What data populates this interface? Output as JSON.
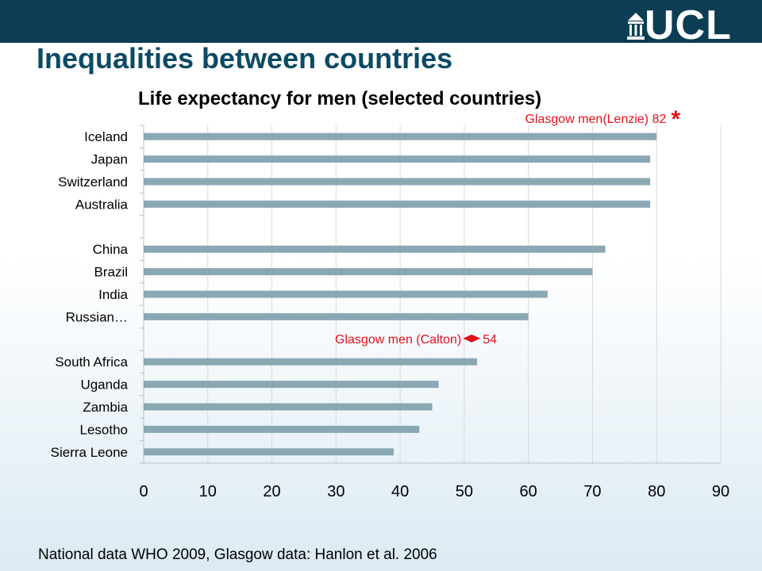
{
  "slide": {
    "title": "Inequalities between countries",
    "source": "National data WHO 2009, Glasgow data: Hanlon et al. 2006"
  },
  "logo": {
    "text": "UCL"
  },
  "colors": {
    "topbar": "#0b3d55",
    "title": "#0b4a66",
    "bar": "#8aa8b4",
    "annotation": "#e2121b"
  },
  "chart_data": {
    "type": "bar",
    "orientation": "horizontal",
    "title": "Life expectancy for men (selected countries)",
    "xlabel": "",
    "ylabel": "",
    "xlim": [
      0,
      90
    ],
    "xticks": [
      0,
      10,
      20,
      30,
      40,
      50,
      60,
      70,
      80,
      90
    ],
    "grid": true,
    "categories": [
      "Iceland",
      "Japan",
      "Switzerland",
      "Australia",
      "",
      "China",
      "Brazil",
      "India",
      "Russian…",
      "",
      "South Africa",
      "Uganda",
      "Zambia",
      "Lesotho",
      "Sierra Leone"
    ],
    "values": [
      80,
      79,
      79,
      79,
      null,
      72,
      70,
      63,
      60,
      null,
      52,
      46,
      45,
      43,
      39
    ],
    "annotations": [
      {
        "text": "Glasgow  men(Lenzie) 82",
        "marker": "*",
        "value": 82
      },
      {
        "text": "Glasgow men (Calton)",
        "value_label": "54",
        "value": 54
      }
    ]
  }
}
